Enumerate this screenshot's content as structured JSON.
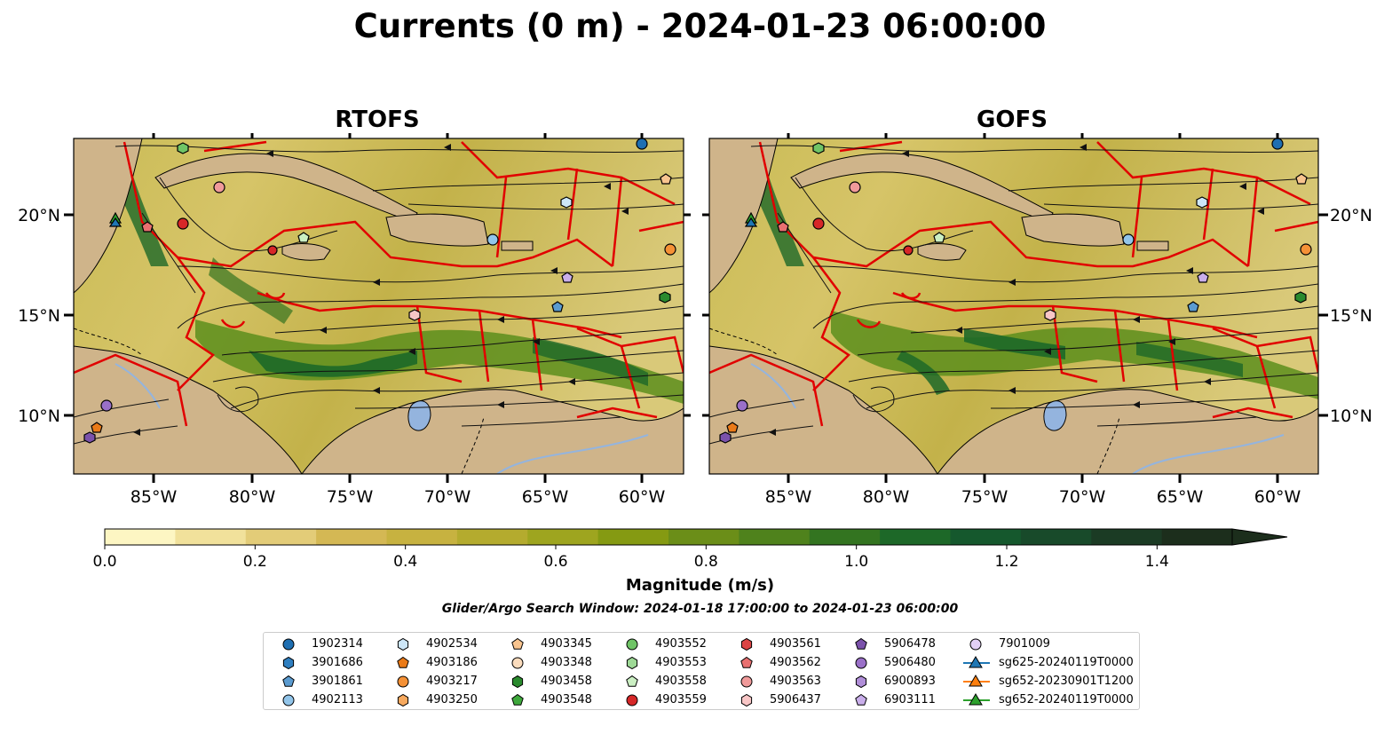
{
  "title": "Currents (0 m) - 2024-01-23 06:00:00",
  "panels": [
    {
      "name": "RTOFS"
    },
    {
      "name": "GOFS"
    }
  ],
  "lat_ticks": [
    "20°N",
    "15°N",
    "10°N"
  ],
  "lon_ticks": [
    "85°W",
    "80°W",
    "75°W",
    "70°W",
    "65°W",
    "60°W"
  ],
  "colorbar": {
    "label": "Magnitude (m/s)",
    "tick_labels": [
      "0.0",
      "0.2",
      "0.4",
      "0.6",
      "0.8",
      "1.0",
      "1.2",
      "1.4"
    ],
    "colors": [
      "#fdf6c3",
      "#f1e19b",
      "#e3cc78",
      "#d4b854",
      "#c7b240",
      "#b4ab2e",
      "#9ea51f",
      "#859a12",
      "#6b8e18",
      "#4f821c",
      "#337420",
      "#1d6828",
      "#15582d",
      "#184a2a",
      "#1b3b24",
      "#1c2e1c"
    ]
  },
  "search_window": "Glider/Argo Search Window: 2024-01-18 17:00:00 to 2024-01-23 06:00:00",
  "legend": [
    {
      "label": "1902314",
      "marker": "circle",
      "color": "#1f6fb2"
    },
    {
      "label": "3901686",
      "marker": "hexagon",
      "color": "#2f7fc0"
    },
    {
      "label": "3901861",
      "marker": "pentagon",
      "color": "#5b9bd0"
    },
    {
      "label": "4902113",
      "marker": "circle",
      "color": "#92c5ea"
    },
    {
      "label": "4902534",
      "marker": "hexagon",
      "color": "#cde6f7"
    },
    {
      "label": "4903186",
      "marker": "pentagon",
      "color": "#ea7a18"
    },
    {
      "label": "4903217",
      "marker": "circle",
      "color": "#f59136"
    },
    {
      "label": "4903250",
      "marker": "hexagon",
      "color": "#f7a95e"
    },
    {
      "label": "4903345",
      "marker": "pentagon",
      "color": "#f8c48f"
    },
    {
      "label": "4903348",
      "marker": "circle",
      "color": "#fbdcbd"
    },
    {
      "label": "4903458",
      "marker": "hexagon",
      "color": "#2a8a2e"
    },
    {
      "label": "4903548",
      "marker": "pentagon",
      "color": "#3ea83c"
    },
    {
      "label": "4903552",
      "marker": "circle",
      "color": "#6fc466"
    },
    {
      "label": "4903553",
      "marker": "hexagon",
      "color": "#9ed996"
    },
    {
      "label": "4903558",
      "marker": "pentagon",
      "color": "#cbefc3"
    },
    {
      "label": "4903559",
      "marker": "circle",
      "color": "#d62728"
    },
    {
      "label": "4903561",
      "marker": "hexagon",
      "color": "#dc4545"
    },
    {
      "label": "4903562",
      "marker": "pentagon",
      "color": "#e87070"
    },
    {
      "label": "4903563",
      "marker": "circle",
      "color": "#f09a9a"
    },
    {
      "label": "5906437",
      "marker": "hexagon",
      "color": "#f8c6c6"
    },
    {
      "label": "5906478",
      "marker": "pentagon",
      "color": "#7b52ab"
    },
    {
      "label": "5906480",
      "marker": "circle",
      "color": "#9a70c8"
    },
    {
      "label": "6900893",
      "marker": "hexagon",
      "color": "#b08ed8"
    },
    {
      "label": "6903111",
      "marker": "pentagon",
      "color": "#c9aeea"
    },
    {
      "label": "7901009",
      "marker": "circle",
      "color": "#e2cff5"
    },
    {
      "label": "sg625-20240119T0000",
      "marker": "triangle-line",
      "color": "#1f77b4"
    },
    {
      "label": "sg652-20230901T1200",
      "marker": "triangle-line",
      "color": "#ff7f0e"
    },
    {
      "label": "sg652-20240119T0000",
      "marker": "triangle-line",
      "color": "#2ca02c"
    }
  ]
}
